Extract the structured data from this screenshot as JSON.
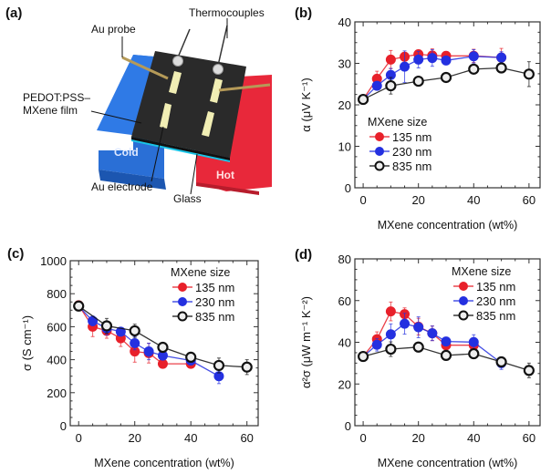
{
  "panels": {
    "a": {
      "label": "(a)",
      "annotations": {
        "thermocouples": "Thermocouples",
        "au_probe": "Au probe",
        "film_line1": "PEDOT:PSS–",
        "film_line2": "MXene film",
        "cold": "Cold",
        "hot": "Hot",
        "au_electrode": "Au electrode",
        "glass": "Glass"
      },
      "colors": {
        "cold": "#2a6fd6",
        "hot": "#e8283a",
        "film": "#2a2a2a",
        "glass": "#19c4e6",
        "electrode": "#f1eeb4"
      }
    }
  },
  "chart_data": [
    {
      "id": "b",
      "panel_label": "(b)",
      "type": "line",
      "title": "",
      "xlabel": "MXene concentration (wt%)",
      "ylabel": "α (μV K⁻¹)",
      "xlim": [
        -3,
        64
      ],
      "ylim": [
        0,
        40
      ],
      "xticks": [
        0,
        20,
        40,
        60
      ],
      "yticks": [
        0,
        10,
        20,
        30,
        40
      ],
      "grid": false,
      "legend": {
        "title": "MXene size",
        "position": "lower-left"
      },
      "series": [
        {
          "name": "135 nm",
          "color": "#e8202a",
          "x": [
            0,
            5,
            10,
            15,
            20,
            25,
            30,
            40,
            50
          ],
          "y": [
            21.3,
            26.3,
            30.9,
            31.6,
            32.2,
            31.9,
            31.8,
            31.8,
            31.4
          ],
          "err": [
            0.6,
            1.8,
            2.2,
            1.0,
            1.0,
            1.6,
            0.6,
            1.6,
            2.2
          ]
        },
        {
          "name": "230 nm",
          "color": "#2430e0",
          "x": [
            0,
            5,
            10,
            15,
            20,
            25,
            30,
            40,
            50
          ],
          "y": [
            21.3,
            24.6,
            27.2,
            29.2,
            30.9,
            31.3,
            30.7,
            31.7,
            31.4
          ],
          "err": [
            0.6,
            1.0,
            1.6,
            3.8,
            2.0,
            2.0,
            0.8,
            1.6,
            1.4
          ]
        },
        {
          "name": "835 nm",
          "color": "#111111",
          "x": [
            0,
            10,
            20,
            30,
            40,
            50,
            60
          ],
          "y": [
            21.3,
            24.6,
            25.7,
            26.6,
            28.6,
            28.9,
            27.4
          ],
          "err": [
            0.5,
            2.0,
            0.5,
            0.5,
            0.5,
            0.8,
            3.0
          ]
        }
      ]
    },
    {
      "id": "c",
      "panel_label": "(c)",
      "type": "line",
      "title": "",
      "xlabel": "MXene concentration (wt%)",
      "ylabel": "σ (S cm⁻¹)",
      "xlim": [
        -3,
        64
      ],
      "ylim": [
        0,
        1000
      ],
      "xticks": [
        0,
        20,
        40,
        60
      ],
      "yticks": [
        0,
        200,
        400,
        600,
        800,
        1000
      ],
      "grid": false,
      "legend": {
        "title": "MXene size",
        "position": "top-right"
      },
      "series": [
        {
          "name": "135 nm",
          "color": "#e8202a",
          "x": [
            0,
            5,
            10,
            15,
            20,
            25,
            30,
            40
          ],
          "y": [
            730,
            600,
            575,
            530,
            450,
            440,
            375,
            375
          ],
          "err": [
            20,
            60,
            45,
            50,
            65,
            60,
            15,
            15
          ]
        },
        {
          "name": "230 nm",
          "color": "#2430e0",
          "x": [
            0,
            5,
            10,
            15,
            20,
            25,
            30,
            40,
            50
          ],
          "y": [
            725,
            635,
            590,
            570,
            500,
            450,
            425,
            395,
            300
          ],
          "err": [
            15,
            30,
            40,
            20,
            40,
            50,
            20,
            20,
            45
          ]
        },
        {
          "name": "835 nm",
          "color": "#111111",
          "x": [
            0,
            10,
            20,
            30,
            40,
            50,
            60
          ],
          "y": [
            725,
            605,
            575,
            475,
            415,
            365,
            355
          ],
          "err": [
            15,
            45,
            40,
            15,
            20,
            45,
            45
          ]
        }
      ]
    },
    {
      "id": "d",
      "panel_label": "(d)",
      "type": "line",
      "title": "",
      "xlabel": "MXene concentration (wt%)",
      "ylabel": "α²σ (μW m⁻¹ K⁻²)",
      "xlim": [
        -3,
        64
      ],
      "ylim": [
        0,
        80
      ],
      "xticks": [
        0,
        20,
        40,
        60
      ],
      "yticks": [
        0,
        20,
        40,
        60,
        80
      ],
      "grid": false,
      "legend": {
        "title": "MXene size",
        "position": "top-right"
      },
      "series": [
        {
          "name": "135 nm",
          "color": "#e8202a",
          "x": [
            0,
            5,
            10,
            15,
            20,
            25,
            30,
            40
          ],
          "y": [
            33.2,
            41.5,
            54.8,
            53.5,
            47.5,
            44.3,
            38.6,
            38.6
          ],
          "err": [
            0.8,
            3.5,
            4.5,
            3.0,
            4.0,
            3.5,
            1.5,
            1.5
          ]
        },
        {
          "name": "230 nm",
          "color": "#2430e0",
          "x": [
            0,
            5,
            10,
            15,
            20,
            25,
            30,
            40,
            50
          ],
          "y": [
            33.2,
            38.8,
            43.8,
            48.9,
            47.2,
            44.3,
            40.4,
            40.1,
            30.0
          ],
          "err": [
            0.8,
            3.0,
            5.0,
            5.0,
            5.0,
            3.5,
            1.5,
            3.5,
            3.0
          ]
        },
        {
          "name": "835 nm",
          "color": "#111111",
          "x": [
            0,
            10,
            20,
            30,
            40,
            50,
            60
          ],
          "y": [
            33.2,
            36.7,
            37.7,
            33.7,
            34.5,
            30.6,
            26.5
          ],
          "err": [
            0.6,
            3.5,
            0.8,
            0.6,
            0.6,
            1.5,
            3.5
          ]
        }
      ]
    }
  ]
}
